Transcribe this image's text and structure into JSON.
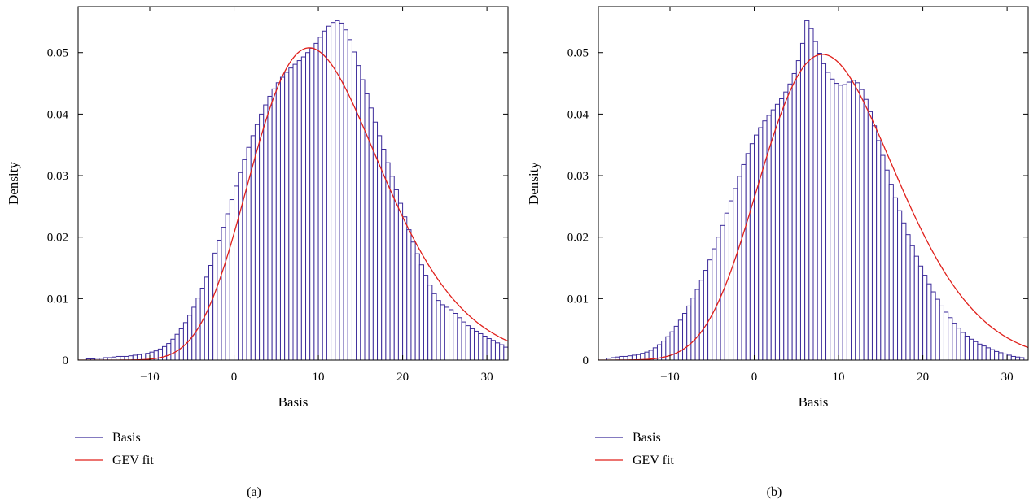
{
  "chart_data": [
    {
      "id": "a",
      "type": "bar",
      "panel_label": "(a)",
      "xlabel": "Basis",
      "ylabel": "Density",
      "xlim": [
        -18.5,
        32.5
      ],
      "ylim": [
        0,
        0.0575
      ],
      "xticks": [
        -10,
        0,
        10,
        20,
        30
      ],
      "xtick_labels": [
        "−10",
        "0",
        "10",
        "20",
        "30"
      ],
      "yticks": [
        0,
        0.01,
        0.02,
        0.03,
        0.04,
        0.05
      ],
      "ytick_labels": [
        "0",
        "0.01",
        "0.02",
        "0.03",
        "0.04",
        "0.05"
      ],
      "legend_position": "below-left",
      "legend": [
        {
          "label": "Basis",
          "color": "#3b2a9a"
        },
        {
          "label": "GEV fit",
          "color": "#e0201b"
        }
      ],
      "series": [
        {
          "name": "Basis",
          "kind": "histogram",
          "bin_start": -17.5,
          "bin_width": 0.5,
          "values": [
            0.0002,
            0.0002,
            0.0003,
            0.0003,
            0.0004,
            0.0004,
            0.0005,
            0.0006,
            0.0006,
            0.0006,
            0.0007,
            0.0008,
            0.0009,
            0.001,
            0.0011,
            0.0013,
            0.0015,
            0.0018,
            0.0022,
            0.0027,
            0.0034,
            0.0042,
            0.0051,
            0.0061,
            0.0073,
            0.0086,
            0.0101,
            0.0117,
            0.0135,
            0.0154,
            0.0174,
            0.0195,
            0.0216,
            0.0238,
            0.0261,
            0.0283,
            0.0305,
            0.0326,
            0.0346,
            0.0365,
            0.0383,
            0.04,
            0.0415,
            0.0429,
            0.0441,
            0.0451,
            0.046,
            0.0468,
            0.0475,
            0.0481,
            0.0487,
            0.0493,
            0.05,
            0.0507,
            0.0515,
            0.0525,
            0.0535,
            0.0543,
            0.0549,
            0.0552,
            0.0548,
            0.0537,
            0.0521,
            0.0501,
            0.0479,
            0.0456,
            0.0433,
            0.041,
            0.0387,
            0.0365,
            0.0343,
            0.0321,
            0.0299,
            0.0277,
            0.0255,
            0.0233,
            0.0212,
            0.0192,
            0.0173,
            0.0155,
            0.0138,
            0.0122,
            0.0108,
            0.0097,
            0.009,
            0.0086,
            0.0082,
            0.0076,
            0.0069,
            0.0062,
            0.0056,
            0.0051,
            0.0047,
            0.0043,
            0.0039,
            0.0035,
            0.0032,
            0.0028,
            0.0025,
            0.0021,
            0.0018
          ]
        },
        {
          "name": "GEV fit",
          "kind": "line",
          "mu": 8.0,
          "sigma": 7.3,
          "xi": -0.12
        }
      ]
    },
    {
      "id": "b",
      "type": "bar",
      "panel_label": "(b)",
      "xlabel": "Basis",
      "ylabel": "Density",
      "xlim": [
        -18.5,
        32.5
      ],
      "ylim": [
        0,
        0.0575
      ],
      "xticks": [
        -10,
        0,
        10,
        20,
        30
      ],
      "xtick_labels": [
        "−10",
        "0",
        "10",
        "20",
        "30"
      ],
      "yticks": [
        0,
        0.01,
        0.02,
        0.03,
        0.04,
        0.05
      ],
      "ytick_labels": [
        "0",
        "0.01",
        "0.02",
        "0.03",
        "0.04",
        "0.05"
      ],
      "legend_position": "below-left",
      "legend": [
        {
          "label": "Basis",
          "color": "#3b2a9a"
        },
        {
          "label": "GEV fit",
          "color": "#e0201b"
        }
      ],
      "series": [
        {
          "name": "Basis",
          "kind": "histogram",
          "bin_start": -17.5,
          "bin_width": 0.5,
          "values": [
            0.0003,
            0.0004,
            0.0005,
            0.0006,
            0.0006,
            0.0007,
            0.0008,
            0.0009,
            0.0011,
            0.0013,
            0.0016,
            0.002,
            0.0025,
            0.0031,
            0.0038,
            0.0046,
            0.0055,
            0.0065,
            0.0076,
            0.0088,
            0.0101,
            0.0115,
            0.013,
            0.0146,
            0.0163,
            0.0181,
            0.02,
            0.0219,
            0.0239,
            0.0259,
            0.0279,
            0.0299,
            0.0318,
            0.0336,
            0.0352,
            0.0366,
            0.0378,
            0.0389,
            0.0398,
            0.0407,
            0.0416,
            0.0425,
            0.0436,
            0.0449,
            0.0466,
            0.0487,
            0.0515,
            0.0552,
            0.0539,
            0.0518,
            0.0499,
            0.0482,
            0.0468,
            0.0457,
            0.045,
            0.0447,
            0.0448,
            0.0452,
            0.0455,
            0.0451,
            0.044,
            0.0424,
            0.0404,
            0.0381,
            0.0357,
            0.0333,
            0.0309,
            0.0286,
            0.0264,
            0.0243,
            0.0223,
            0.0204,
            0.0186,
            0.0169,
            0.0153,
            0.0138,
            0.0124,
            0.0111,
            0.0099,
            0.0088,
            0.0078,
            0.0069,
            0.006,
            0.0052,
            0.0045,
            0.0039,
            0.0034,
            0.003,
            0.0026,
            0.0023,
            0.002,
            0.0017,
            0.0014,
            0.0012,
            0.001,
            0.0008,
            0.0006,
            0.0005,
            0.0004
          ]
        },
        {
          "name": "GEV fit",
          "kind": "line",
          "mu": 6.8,
          "sigma": 7.5,
          "xi": -0.16
        }
      ]
    }
  ]
}
